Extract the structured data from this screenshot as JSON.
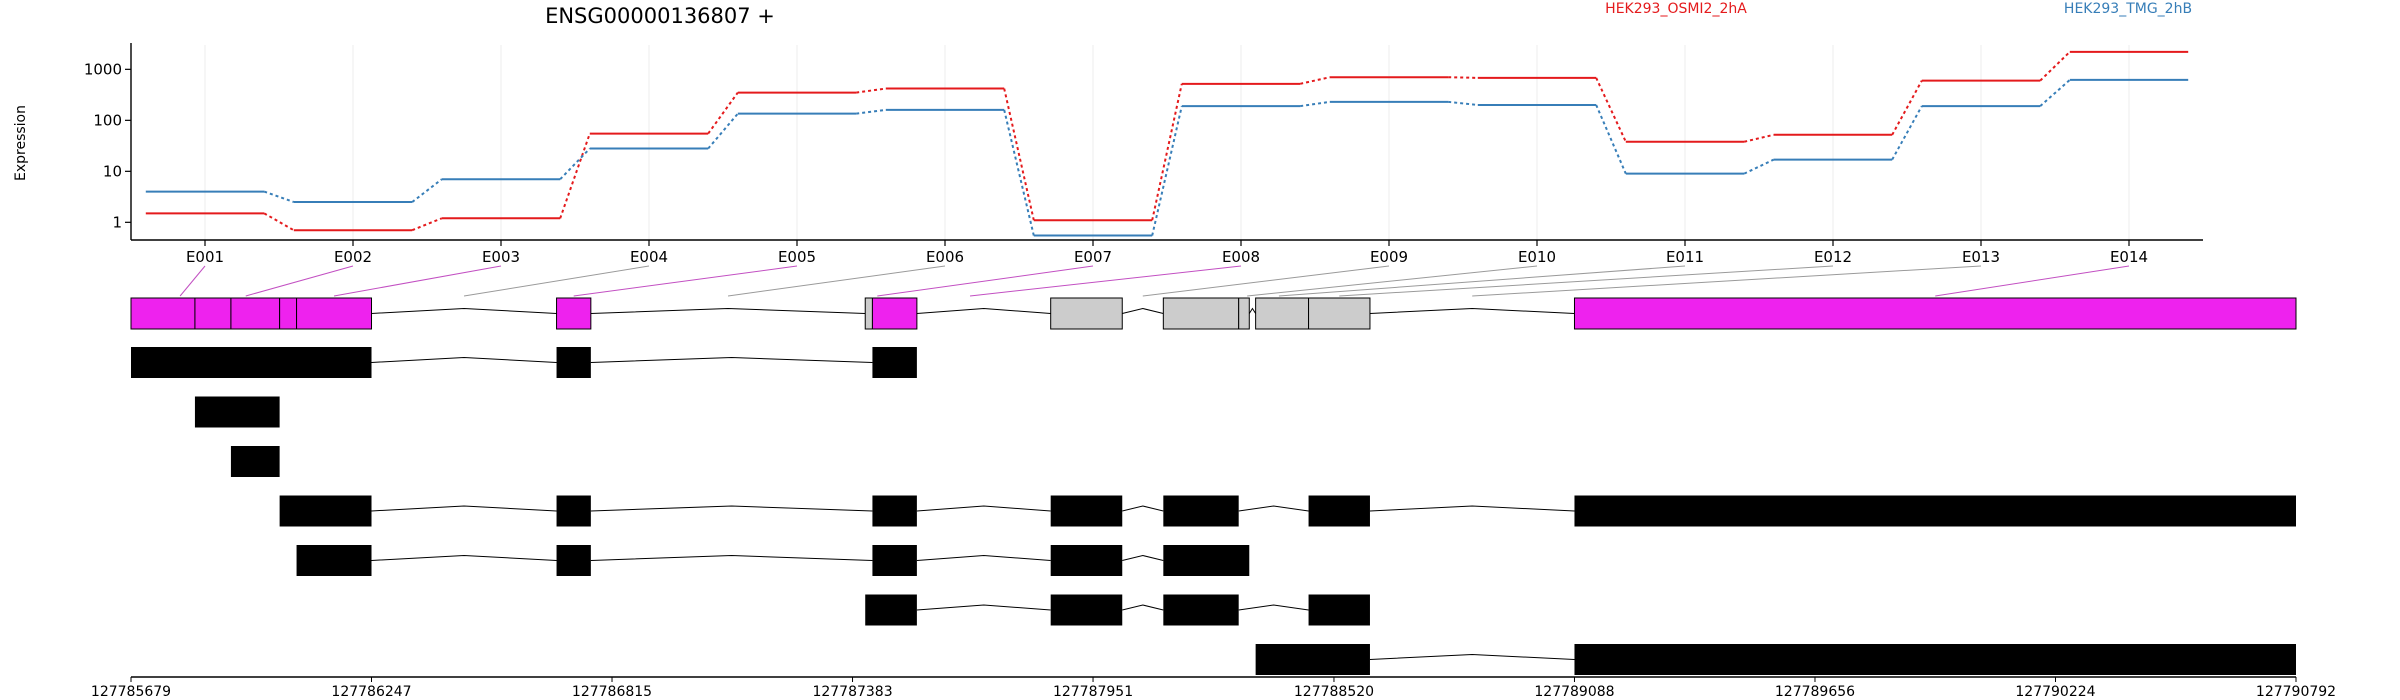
{
  "chart_data": {
    "type": "line",
    "title": "ENSG00000136807 +",
    "ylabel": "Expression",
    "y_scale": "log",
    "y_ticks": [
      1,
      10,
      100,
      1000
    ],
    "ylim": [
      0.45,
      3000
    ],
    "grid": "vertical",
    "legend_placement": "top",
    "categories": [
      "E001",
      "E002",
      "E003",
      "E004",
      "E005",
      "E006",
      "E007",
      "E008",
      "E009",
      "E010",
      "E011",
      "E012",
      "E013",
      "E014"
    ],
    "series": [
      {
        "name": "HEK293_OSMI2_2hA",
        "color": "#e41a1c",
        "values": [
          1.5,
          0.7,
          1.2,
          55,
          350,
          420,
          1.1,
          520,
          700,
          680,
          38,
          52,
          600,
          2200
        ]
      },
      {
        "name": "HEK293_TMG_2hB",
        "color": "#377eb8",
        "values": [
          4,
          2.5,
          7,
          28,
          135,
          160,
          0.55,
          190,
          230,
          200,
          9,
          17,
          190,
          620
        ]
      }
    ],
    "genomic_axis": {
      "ticks": [
        "127785679",
        "127786247",
        "127786815",
        "127787383",
        "127787951",
        "127788520",
        "127789088",
        "127789656",
        "127790224",
        "127790792"
      ],
      "start": 127785679,
      "end": 127790792
    },
    "exon_highlight_color": "#ee22ee",
    "exon_neutral_color": "#cccccc",
    "gene_model": [
      {
        "start": 127785679,
        "end": 127785830,
        "state": "diff"
      },
      {
        "start": 127785830,
        "end": 127785915,
        "state": "diff"
      },
      {
        "start": 127785915,
        "end": 127786030,
        "state": "diff"
      },
      {
        "start": 127786030,
        "end": 127786070,
        "state": "diff"
      },
      {
        "start": 127786070,
        "end": 127786247,
        "state": "diff"
      },
      {
        "start": 127786684,
        "end": 127786765,
        "state": "diff"
      },
      {
        "start": 127787413,
        "end": 127787430,
        "state": "none"
      },
      {
        "start": 127787430,
        "end": 127787535,
        "state": "diff"
      },
      {
        "start": 127787851,
        "end": 127788020,
        "state": "none"
      },
      {
        "start": 127788117,
        "end": 127788295,
        "state": "none"
      },
      {
        "start": 127788295,
        "end": 127788320,
        "state": "none"
      },
      {
        "start": 127788335,
        "end": 127788460,
        "state": "none"
      },
      {
        "start": 127788460,
        "end": 127788605,
        "state": "none"
      },
      {
        "start": 127789088,
        "end": 127790792,
        "state": "diff"
      }
    ],
    "mapping_targets": [
      [
        127785760,
        127785830
      ],
      [
        127785830,
        127786070
      ],
      [
        127786070,
        127786247
      ],
      [
        127786247,
        127786684
      ],
      [
        127786684,
        127786765
      ],
      [
        127786765,
        127787413
      ],
      [
        127787413,
        127787470
      ],
      [
        127787470,
        127787851
      ],
      [
        127788020,
        127788117
      ],
      [
        127788295,
        127788335
      ],
      [
        127788320,
        127788460
      ],
      [
        127788460,
        127788605
      ],
      [
        127788605,
        127789088
      ],
      [
        127789088,
        127790792
      ]
    ],
    "transcripts": [
      {
        "exons": [
          [
            127785679,
            127786247
          ],
          [
            127786684,
            127786765
          ],
          [
            127787430,
            127787535
          ]
        ]
      },
      {
        "exons": [
          [
            127785830,
            127786030
          ]
        ]
      },
      {
        "exons": [
          [
            127785915,
            127786030
          ]
        ]
      },
      {
        "exons": [
          [
            127786030,
            127786247
          ],
          [
            127786684,
            127786765
          ],
          [
            127787430,
            127787535
          ],
          [
            127787851,
            127788020
          ],
          [
            127788117,
            127788295
          ],
          [
            127788460,
            127788605
          ],
          [
            127789088,
            127790792
          ]
        ]
      },
      {
        "exons": [
          [
            127786070,
            127786247
          ],
          [
            127786684,
            127786765
          ],
          [
            127787430,
            127787535
          ],
          [
            127787851,
            127788020
          ],
          [
            127788117,
            127788320
          ]
        ]
      },
      {
        "exons": [
          [
            127787413,
            127787535
          ],
          [
            127787851,
            127788020
          ],
          [
            127788117,
            127788295
          ],
          [
            127788460,
            127788605
          ]
        ]
      },
      {
        "exons": [
          [
            127788335,
            127788605
          ],
          [
            127789088,
            127790792
          ]
        ]
      }
    ]
  }
}
